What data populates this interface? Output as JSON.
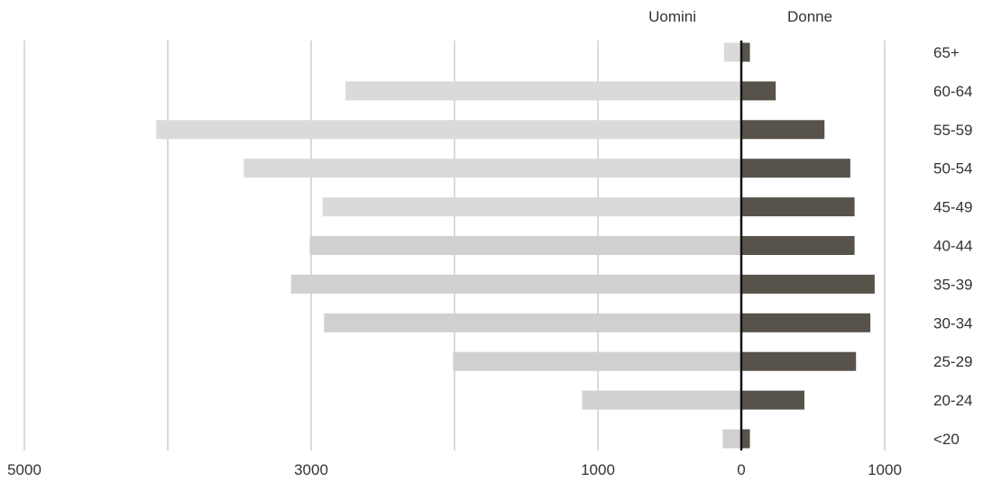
{
  "chart_data": {
    "type": "bar",
    "orientation": "horizontal-diverging",
    "categories": [
      "65+",
      "60-64",
      "55-59",
      "50-54",
      "45-49",
      "40-44",
      "35-39",
      "30-34",
      "25-29",
      "20-24",
      "<20"
    ],
    "series": [
      {
        "name": "Uomini",
        "values": [
          120,
          2760,
          4080,
          3470,
          2920,
          3010,
          3140,
          2910,
          2010,
          1110,
          130
        ]
      },
      {
        "name": "Donne",
        "values": [
          60,
          240,
          580,
          760,
          790,
          790,
          930,
          900,
          800,
          440,
          60
        ]
      }
    ],
    "x_ticks": [
      {
        "value": -5000,
        "label": "5000"
      },
      {
        "value": -3000,
        "label": "3000"
      },
      {
        "value": -1000,
        "label": "1000"
      },
      {
        "value": 0,
        "label": "0"
      },
      {
        "value": 1000,
        "label": "1000"
      }
    ],
    "gridlines": [
      -5000,
      -4000,
      -3000,
      -2000,
      -1000,
      1000
    ],
    "xlim": [
      -5000,
      1000
    ],
    "title": "",
    "xlabel": "",
    "ylabel": "",
    "grid": true,
    "legend": "top-center",
    "colors": {
      "Uomini": "#dadada",
      "Uomini_alt": "#d0d0d0",
      "Donne": "#57524a",
      "axis": "#111111",
      "grid": "#b5b5b5"
    }
  }
}
